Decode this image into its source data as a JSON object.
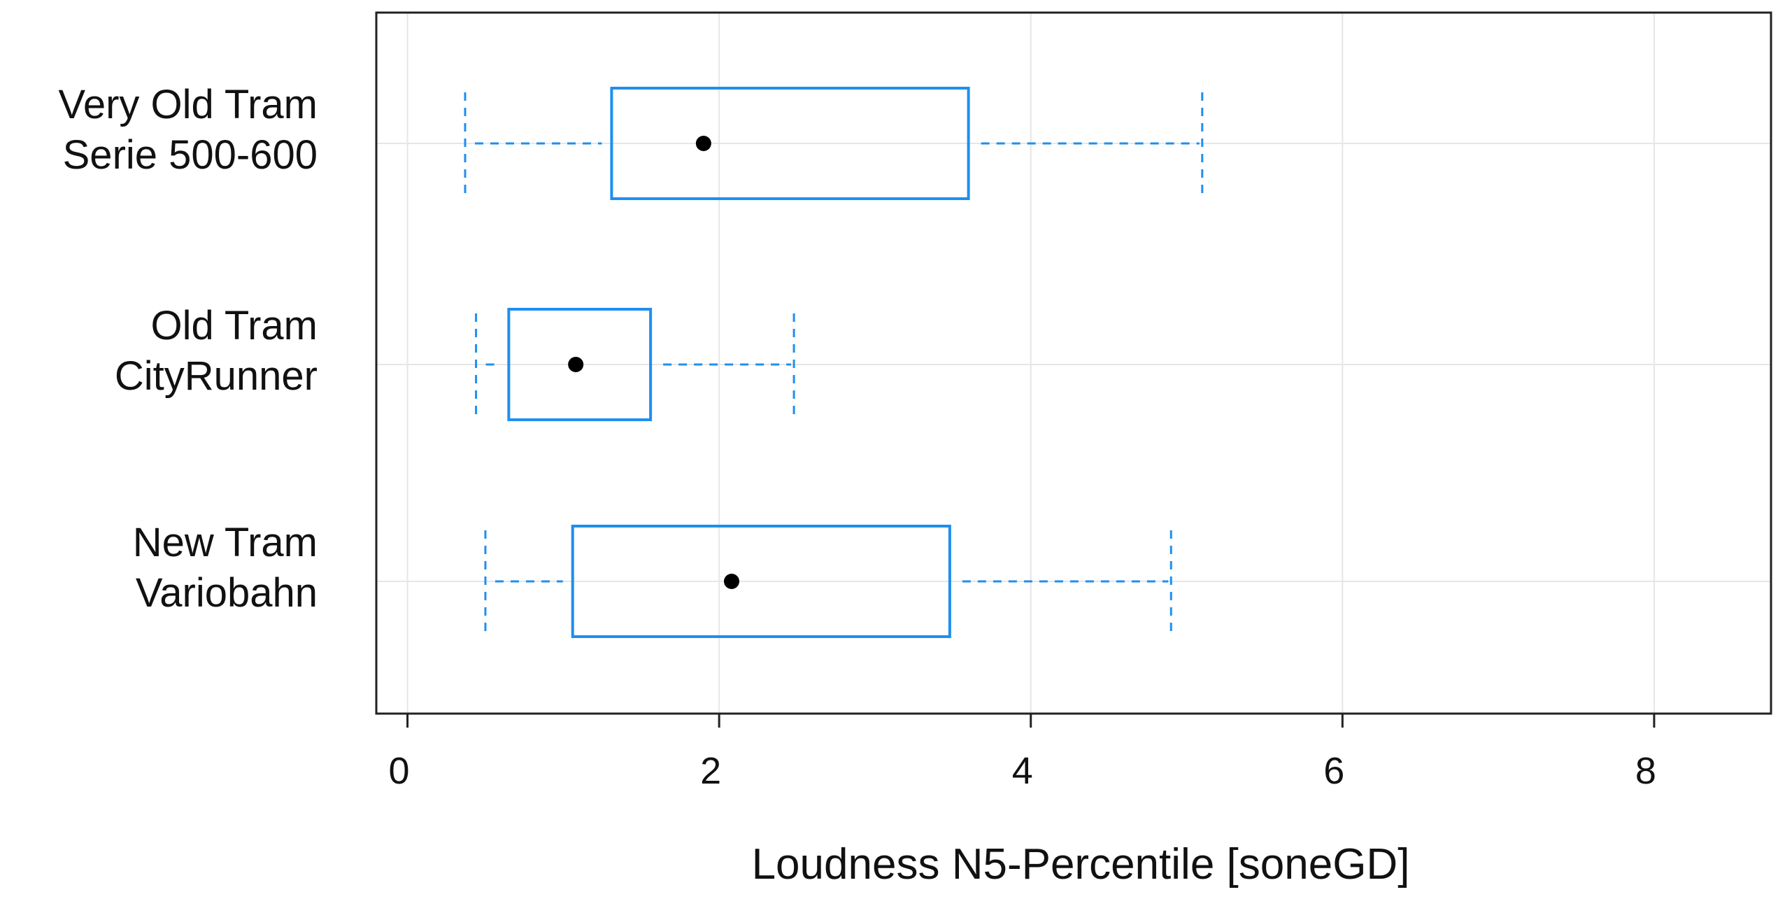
{
  "chart_data": {
    "type": "boxplot",
    "orientation": "horizontal",
    "xlabel": "Loudness N5-Percentile [soneGD]",
    "ylabel": "",
    "xlim": [
      -0.2,
      8.75
    ],
    "xticks": [
      0,
      2,
      4,
      6,
      8
    ],
    "xtick_labels": [
      "0",
      "2",
      "4",
      "6",
      "8"
    ],
    "grid": true,
    "colors": {
      "box": "#1e8ff0",
      "mean_marker": "#000000",
      "grid": "#e6e6e6",
      "frame": "#222222"
    },
    "series": [
      {
        "label_lines": [
          "Very Old Tram",
          "Serie 500-600"
        ],
        "whisker_low": 0.37,
        "q1": 1.31,
        "mean": 1.9,
        "q3": 3.6,
        "whisker_high": 5.1
      },
      {
        "label_lines": [
          "Old Tram",
          "CityRunner"
        ],
        "whisker_low": 0.44,
        "q1": 0.65,
        "mean": 1.08,
        "q3": 1.56,
        "whisker_high": 2.48
      },
      {
        "label_lines": [
          "New Tram",
          "Variobahn"
        ],
        "whisker_low": 0.5,
        "q1": 1.06,
        "mean": 2.08,
        "q3": 3.48,
        "whisker_high": 4.9
      }
    ]
  }
}
